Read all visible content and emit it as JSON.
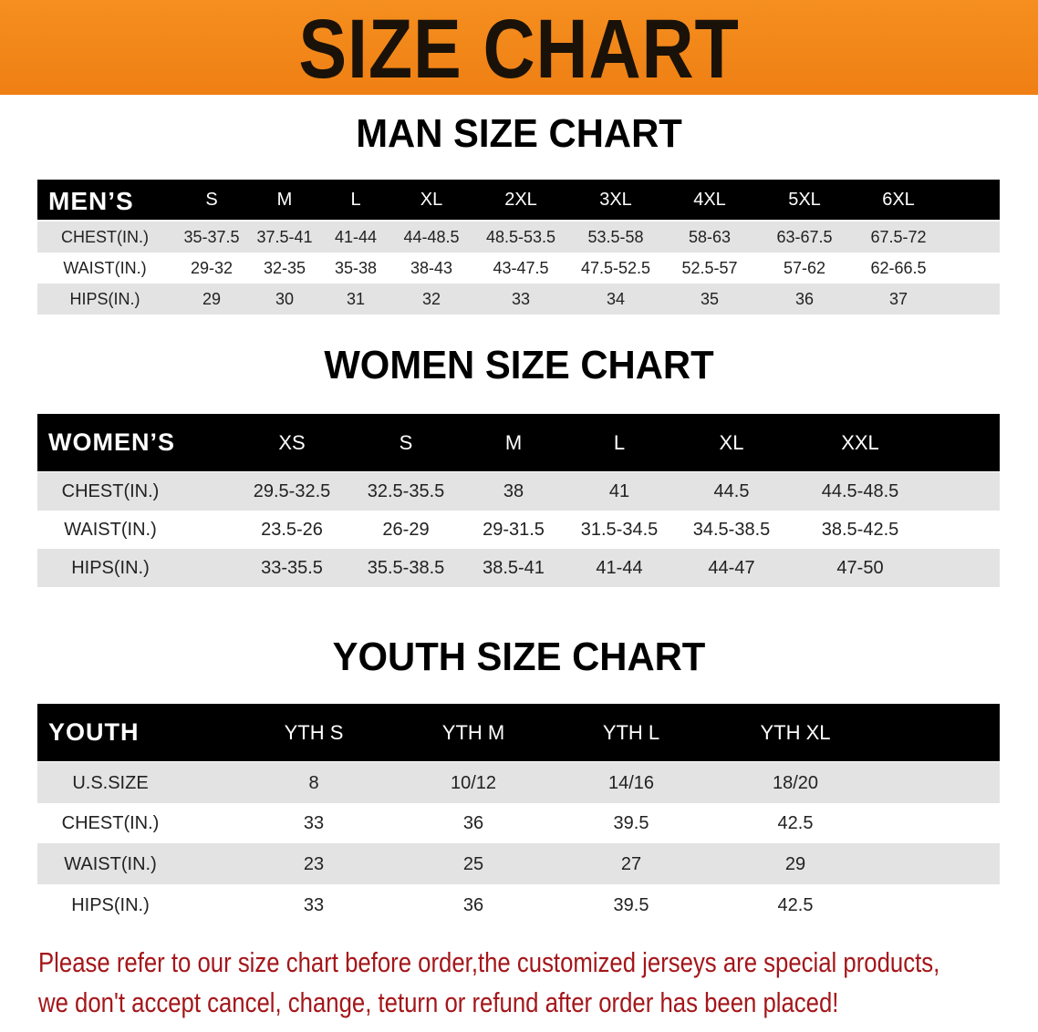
{
  "banner_title": "SIZE CHART",
  "men": {
    "title": "MAN SIZE CHART",
    "header_label": "MEN’S",
    "sizes": [
      "S",
      "M",
      "L",
      "XL",
      "2XL",
      "3XL",
      "4XL",
      "5XL",
      "6XL"
    ],
    "rows": [
      {
        "label": "CHEST(IN.)",
        "values": [
          "35-37.5",
          "37.5-41",
          "41-44",
          "44-48.5",
          "48.5-53.5",
          "53.5-58",
          "58-63",
          "63-67.5",
          "67.5-72"
        ]
      },
      {
        "label": "WAIST(IN.)",
        "values": [
          "29-32",
          "32-35",
          "35-38",
          "38-43",
          "43-47.5",
          "47.5-52.5",
          "52.5-57",
          "57-62",
          "62-66.5"
        ]
      },
      {
        "label": "HIPS(IN.)",
        "values": [
          "29",
          "30",
          "31",
          "32",
          "33",
          "34",
          "35",
          "36",
          "37"
        ]
      }
    ]
  },
  "women": {
    "title": "WOMEN SIZE CHART",
    "header_label": "WOMEN’S",
    "sizes": [
      "XS",
      "S",
      "M",
      "L",
      "XL",
      "XXL"
    ],
    "rows": [
      {
        "label": "CHEST(IN.)",
        "values": [
          "29.5-32.5",
          "32.5-35.5",
          "38",
          "41",
          "44.5",
          "44.5-48.5"
        ]
      },
      {
        "label": "WAIST(IN.)",
        "values": [
          "23.5-26",
          "26-29",
          "29-31.5",
          "31.5-34.5",
          "34.5-38.5",
          "38.5-42.5"
        ]
      },
      {
        "label": "HIPS(IN.)",
        "values": [
          "33-35.5",
          "35.5-38.5",
          "38.5-41",
          "41-44",
          "44-47",
          "47-50"
        ]
      }
    ]
  },
  "youth": {
    "title": "YOUTH SIZE CHART",
    "header_label": "YOUTH",
    "sizes": [
      "YTH S",
      "YTH M",
      "YTH L",
      "YTH XL"
    ],
    "rows": [
      {
        "label": "U.S.SIZE",
        "values": [
          "8",
          "10/12",
          "14/16",
          "18/20"
        ]
      },
      {
        "label": "CHEST(IN.)",
        "values": [
          "33",
          "36",
          "39.5",
          "42.5"
        ]
      },
      {
        "label": "WAIST(IN.)",
        "values": [
          "23",
          "25",
          "27",
          "29"
        ]
      },
      {
        "label": "HIPS(IN.)",
        "values": [
          "33",
          "36",
          "39.5",
          "42.5"
        ]
      }
    ]
  },
  "notice": {
    "line1": "Please refer to our size chart before order,the customized jerseys are special products,",
    "line2": "we don't accept cancel, change, teturn or refund after order has been placed!"
  },
  "colors": {
    "banner": "#f28718",
    "header_bg": "#000000",
    "row_shade": "#e3e3e3",
    "notice": "#a4161a"
  }
}
